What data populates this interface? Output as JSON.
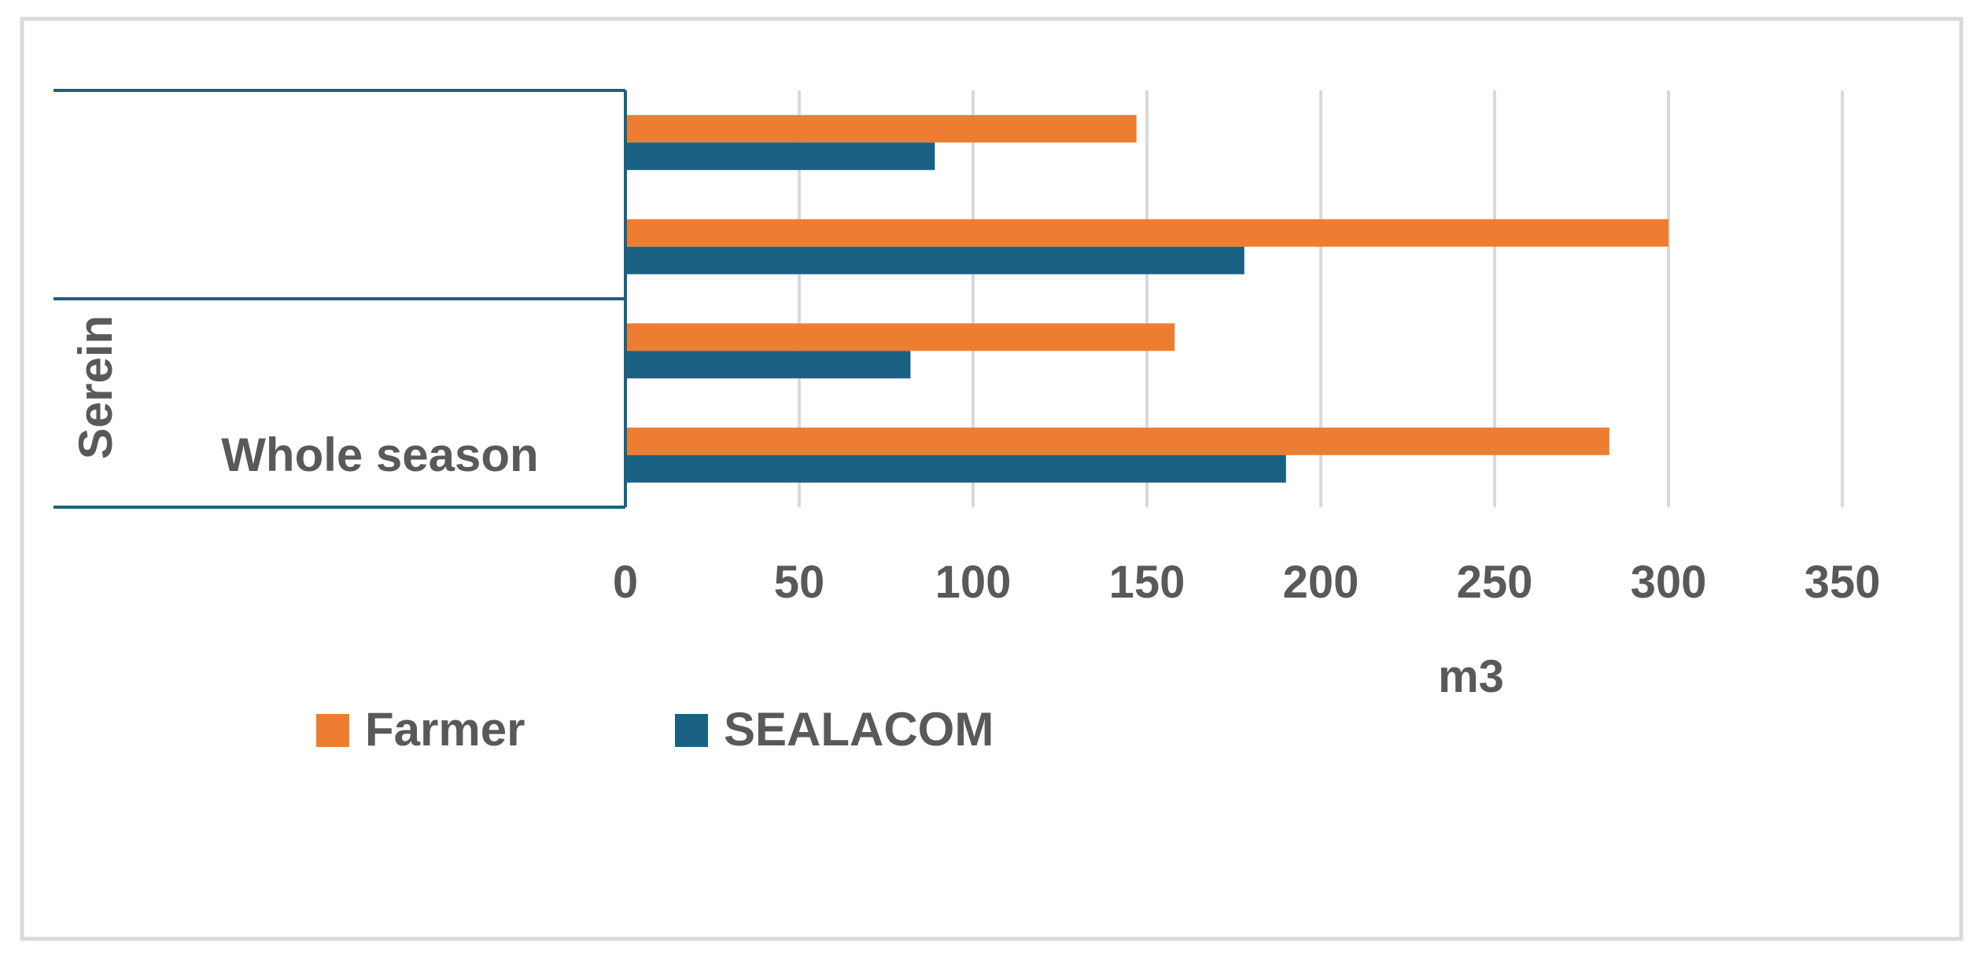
{
  "chart_data": {
    "type": "bar",
    "orientation": "horizontal",
    "title": "",
    "xlabel": "m3",
    "ylabel": "",
    "xlim": [
      0,
      350
    ],
    "x_ticks": [
      0,
      50,
      100,
      150,
      200,
      250,
      300,
      350
    ],
    "grid": true,
    "legend_position": "bottom-left",
    "colors": {
      "Farmer": "#ED7D31",
      "SEALACOM": "#1B6183",
      "frame": "#1B6183",
      "grid": "#D9D9D9",
      "border": "#D9D9D9",
      "text": "#595959"
    },
    "categories": [
      "",
      "",
      "",
      "Whole season"
    ],
    "groups": [
      {
        "label": "",
        "categories": [
          0,
          1
        ]
      },
      {
        "label": "Serein",
        "categories": [
          2,
          3
        ]
      }
    ],
    "series": [
      {
        "name": "Farmer",
        "values": [
          147,
          300,
          158,
          283
        ]
      },
      {
        "name": "SEALACOM",
        "values": [
          89,
          178,
          82,
          190
        ]
      }
    ]
  }
}
